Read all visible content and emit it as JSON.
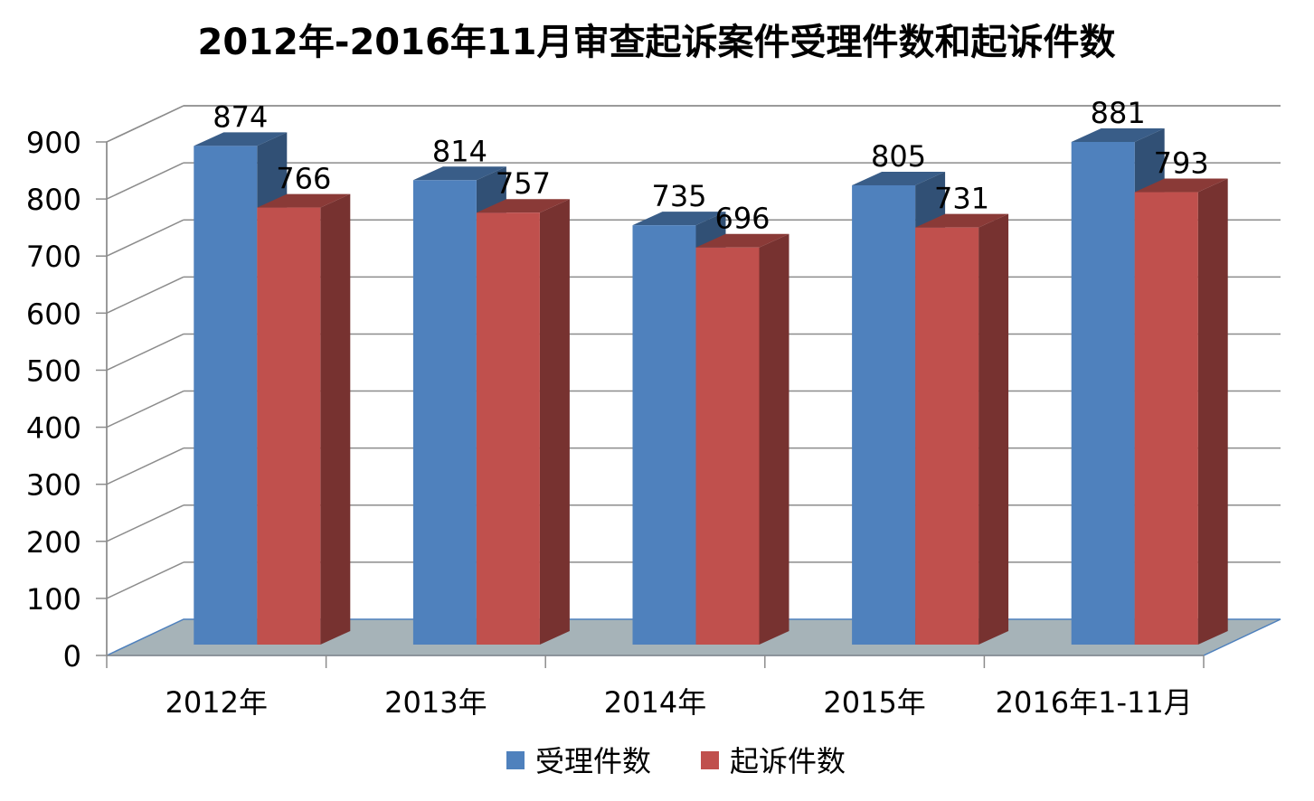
{
  "chart_data": {
    "type": "bar",
    "title": "2012年-2016年11月审查起诉案件受理件数和起诉件数",
    "categories": [
      "2012年",
      "2013年",
      "2014年",
      "2015年",
      "2016年1-11月"
    ],
    "series": [
      {
        "name": "受理件数",
        "values": [
          874,
          814,
          735,
          805,
          881
        ],
        "color": "#4f81bd"
      },
      {
        "name": "起诉件数",
        "values": [
          766,
          757,
          696,
          731,
          793
        ],
        "color": "#c0504d"
      }
    ],
    "ylim": [
      0,
      900
    ],
    "yticks": [
      "0",
      "100",
      "200",
      "300",
      "400",
      "500",
      "600",
      "700",
      "800",
      "900"
    ],
    "grid": true,
    "legend": "bottom",
    "style": "3d-column",
    "floor_color": "#a6b3b8"
  }
}
